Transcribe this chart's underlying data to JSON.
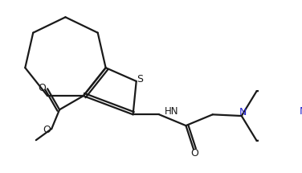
{
  "bg_color": "#ffffff",
  "line_color": "#1a1a1a",
  "N_color": "#2222cc",
  "S_color": "#1a1a1a",
  "line_width": 1.6,
  "figsize": [
    3.76,
    2.15
  ],
  "dpi": 100,
  "xlim": [
    0,
    376
  ],
  "ylim": [
    0,
    215
  ]
}
